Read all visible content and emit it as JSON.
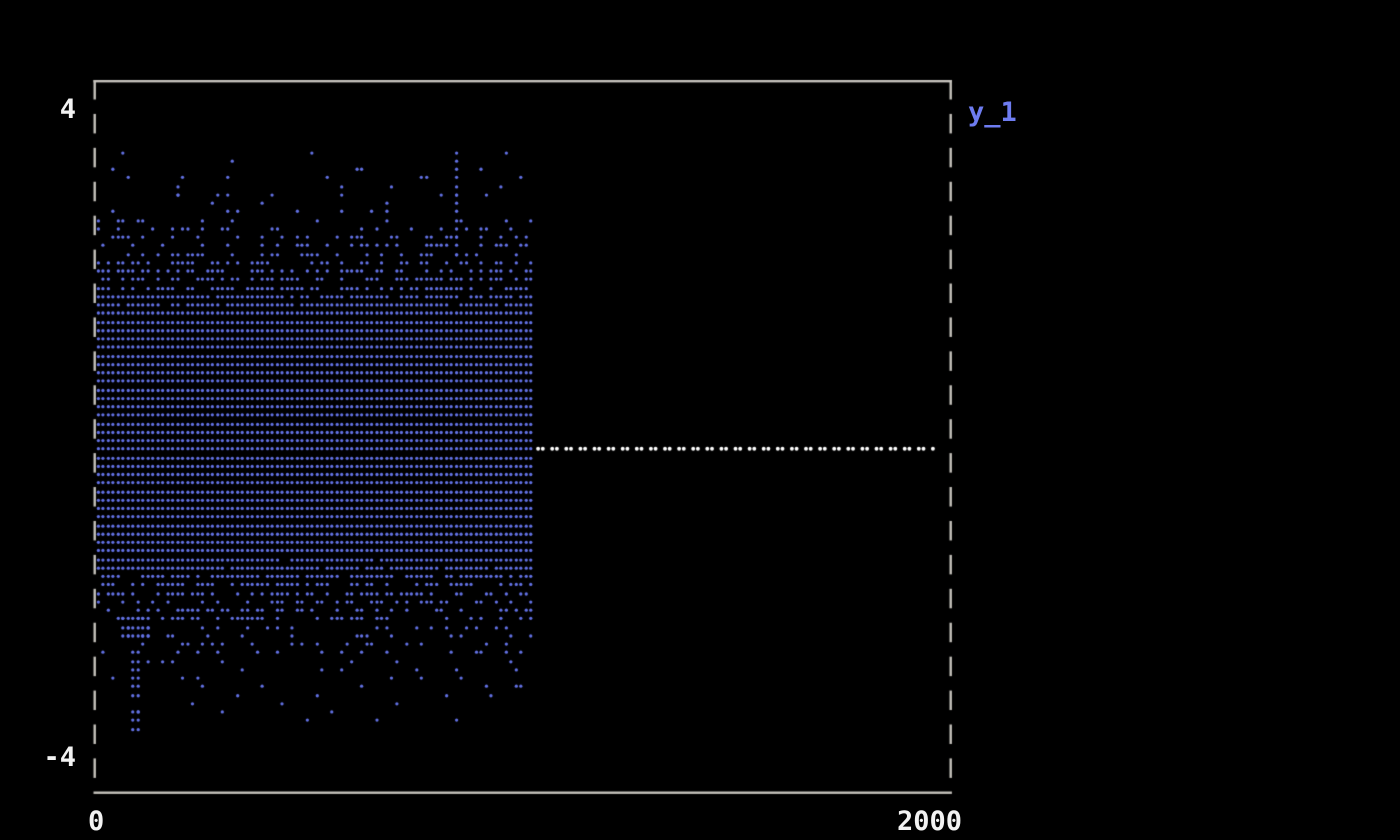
{
  "figure": {
    "background": "#000000",
    "border_color": "#c6c3bd",
    "text_color": "#f2f2f2",
    "accent_color": "#6e7cf0",
    "dot_color": "#6271e4",
    "flat_line_color": "#ffffff"
  },
  "labels": {
    "y_max": "4",
    "y_min": "-4",
    "x_min": "0",
    "x_max": "2000",
    "legend": "y_1"
  },
  "chart_data": {
    "type": "scatter",
    "title": "",
    "xlabel": "",
    "ylabel": "",
    "xlim": [
      0,
      2000
    ],
    "ylim": [
      -4,
      4
    ],
    "x_tick_labels": [
      "0",
      "2000"
    ],
    "y_tick_labels": [
      "4",
      "-4"
    ],
    "grid": false,
    "legend": {
      "position": "outside-top-right",
      "entries": [
        {
          "label": "y_1",
          "color": "#6e7cf0"
        }
      ]
    },
    "render_style": "terminal-braille-dots",
    "series": [
      {
        "name": "y_1",
        "color": "#6271e4",
        "kind": "noise-scatter",
        "marker": "braille-dot",
        "x_range": [
          0,
          1030
        ],
        "n_samples_approx": 1024,
        "y_distribution": {
          "type": "gaussian",
          "mean": 0.04,
          "sd": 1.12,
          "clip": [
            -3.65,
            3.6
          ],
          "saturation": 2.6
        },
        "clusters": [
          {
            "desc": "tall-spike",
            "x": 851,
            "y_range": [
              2.2,
              3.57
            ]
          },
          {
            "desc": "isolated-dot-top",
            "x": 196,
            "y_range": [
              3.0,
              3.12
            ]
          },
          {
            "desc": "lower-left-block",
            "x_range": [
              60,
              130
            ],
            "y_range": [
              -2.56,
              -2.18
            ]
          },
          {
            "desc": "lower-left-column",
            "x_range": [
              84,
              112
            ],
            "y_range": [
              -3.3,
              -2.6
            ]
          },
          {
            "desc": "lower-left-tail",
            "x_range": [
              90,
              110
            ],
            "y_range": [
              -3.66,
              -3.37
            ]
          },
          {
            "desc": "isolated-dot-bottom",
            "x": 917,
            "y_range": [
              -3.12,
              -3.0
            ]
          }
        ]
      },
      {
        "name": "flat-zero-segment",
        "color": "#ffffff",
        "kind": "dotted-horizontal-line",
        "y": -0.14,
        "x_range": [
          1040,
          1965
        ]
      }
    ]
  }
}
